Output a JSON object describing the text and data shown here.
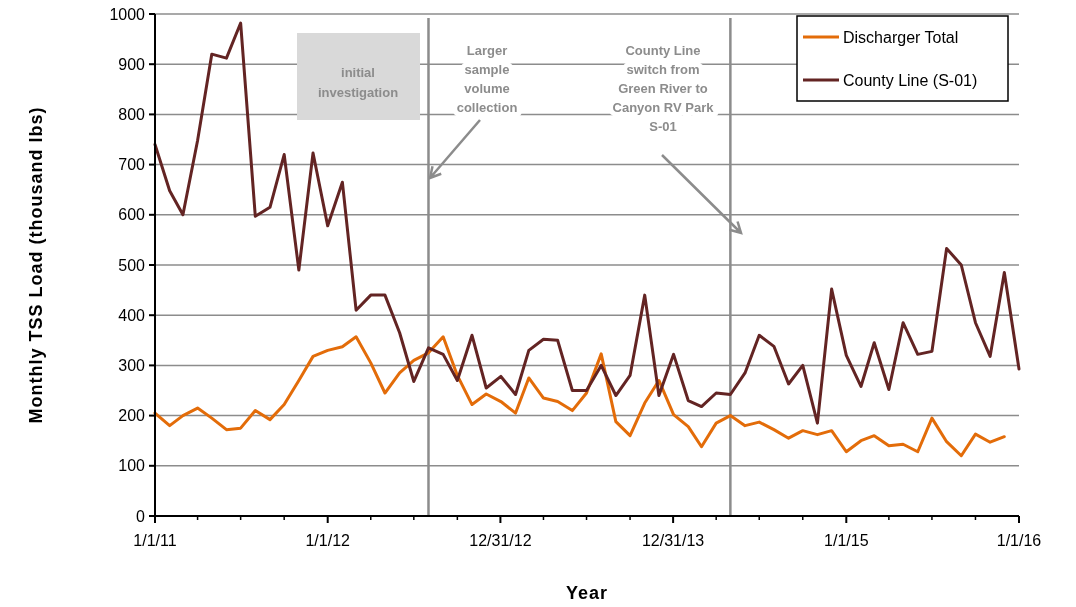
{
  "chart_data": {
    "type": "line",
    "xlabel": "Year",
    "ylabel": "Monthly TSS Load (thousand lbs)",
    "x": [
      "2011-01",
      "2011-02",
      "2011-03",
      "2011-04",
      "2011-05",
      "2011-06",
      "2011-07",
      "2011-08",
      "2011-09",
      "2011-10",
      "2011-11",
      "2011-12",
      "2012-01",
      "2012-02",
      "2012-03",
      "2012-04",
      "2012-05",
      "2012-06",
      "2012-07",
      "2012-08",
      "2012-09",
      "2012-10",
      "2012-11",
      "2012-12",
      "2013-01",
      "2013-02",
      "2013-03",
      "2013-04",
      "2013-05",
      "2013-06",
      "2013-07",
      "2013-08",
      "2013-09",
      "2013-10",
      "2013-11",
      "2013-12",
      "2014-01",
      "2014-02",
      "2014-03",
      "2014-04",
      "2014-05",
      "2014-06",
      "2014-07",
      "2014-08",
      "2014-09",
      "2014-10",
      "2014-11",
      "2014-12",
      "2015-01",
      "2015-02",
      "2015-03",
      "2015-04",
      "2015-05",
      "2015-06",
      "2015-07",
      "2015-08",
      "2015-09",
      "2015-10",
      "2015-11",
      "2015-12",
      "2016-01"
    ],
    "series": [
      {
        "name": "Discharger Total",
        "color": "#e36c09",
        "values": [
          205,
          180,
          200,
          215,
          195,
          172,
          175,
          210,
          192,
          222,
          270,
          318,
          330,
          337,
          357,
          305,
          245,
          285,
          310,
          325,
          357,
          280,
          222,
          243,
          228,
          205,
          275,
          235,
          228,
          210,
          245,
          323,
          188,
          160,
          225,
          270,
          202,
          178,
          138,
          185,
          200,
          180,
          187,
          172,
          155,
          170,
          162,
          170,
          128,
          150,
          160,
          140,
          143,
          128,
          195,
          148,
          120,
          163,
          147,
          158,
          null
        ]
      },
      {
        "name": "County Line (S-01)",
        "color": "#632423",
        "values": [
          740,
          648,
          600,
          748,
          920,
          912,
          982,
          597,
          615,
          720,
          490,
          723,
          578,
          665,
          410,
          440,
          440,
          365,
          268,
          335,
          322,
          270,
          360,
          255,
          278,
          242,
          330,
          352,
          350,
          250,
          250,
          300,
          240,
          280,
          440,
          240,
          322,
          230,
          218,
          245,
          242,
          285,
          360,
          338,
          263,
          300,
          185,
          452,
          320,
          258,
          345,
          252,
          385,
          322,
          328,
          533,
          500,
          385,
          318,
          485,
          293
        ]
      }
    ],
    "xlim": [
      "2011-01-01",
      "2016-01-01"
    ],
    "xticks": [
      {
        "value": "2011-01-01",
        "label": "1/1/11"
      },
      {
        "value": "2011-04-01",
        "label": null
      },
      {
        "value": "2011-07-01",
        "label": null
      },
      {
        "value": "2011-10-01",
        "label": null
      },
      {
        "value": "2012-01-01",
        "label": "1/1/12"
      },
      {
        "value": "2012-04-01",
        "label": null
      },
      {
        "value": "2012-07-01",
        "label": null
      },
      {
        "value": "2012-10-01",
        "label": null
      },
      {
        "value": "2012-12-31",
        "label": "12/31/12"
      },
      {
        "value": "2013-04-01",
        "label": null
      },
      {
        "value": "2013-07-01",
        "label": null
      },
      {
        "value": "2013-10-01",
        "label": null
      },
      {
        "value": "2013-12-31",
        "label": "12/31/13"
      },
      {
        "value": "2014-04-01",
        "label": null
      },
      {
        "value": "2014-07-01",
        "label": null
      },
      {
        "value": "2014-10-01",
        "label": null
      },
      {
        "value": "2015-01-01",
        "label": "1/1/15"
      },
      {
        "value": "2015-04-01",
        "label": null
      },
      {
        "value": "2015-07-01",
        "label": null
      },
      {
        "value": "2015-10-01",
        "label": null
      },
      {
        "value": "2016-01-01",
        "label": "1/1/16"
      }
    ],
    "ylim": [
      0,
      1000
    ],
    "yticks": [
      0,
      100,
      200,
      300,
      400,
      500,
      600,
      700,
      800,
      900,
      1000
    ],
    "grid": "y",
    "legend": "top right",
    "marker": "none",
    "line_style": "solid",
    "ref_lines": [
      {
        "axis": "x",
        "value": "2012-08-01",
        "label": "Larger sample volume collection",
        "color": "#8c8c8c"
      },
      {
        "axis": "x",
        "value": "2014-05-01",
        "label": "County Line switch from Green River to Canyon RV Park S-01",
        "color": "#8c8c8c"
      }
    ],
    "annotations": [
      "initial investigation"
    ]
  }
}
